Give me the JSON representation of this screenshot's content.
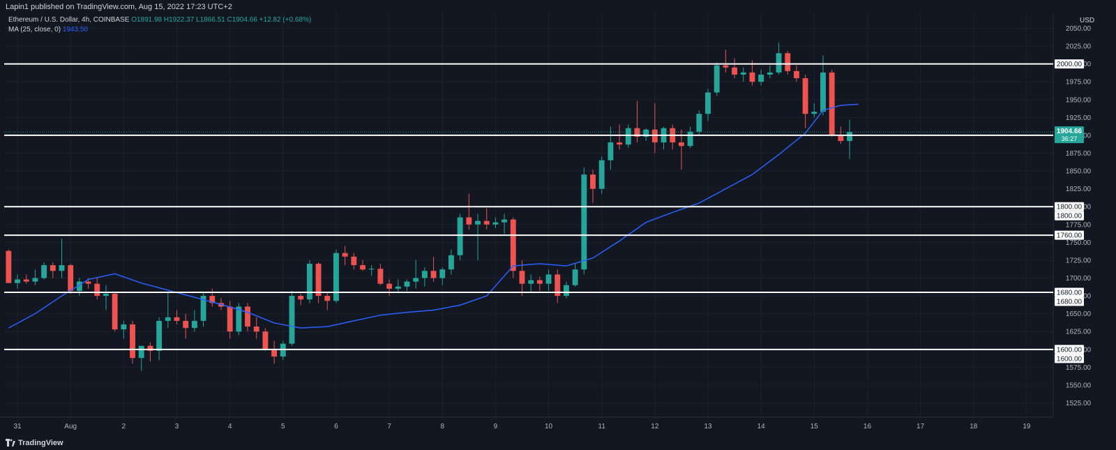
{
  "header": {
    "publisher": "Lapin1 published on TradingView.com, Aug 15, 2022 17:23 UTC+2"
  },
  "legend": {
    "symbol": "Ethereum / U.S. Dollar, 4h, COINBASE",
    "ohlc": "O1891.98 H1922.37 L1866.51 C1904.66 +12.82 (+0.68%)",
    "ma_label": "MA (25, close, 0)",
    "ma_value": "1943.50"
  },
  "footer": {
    "brand": "TradingView"
  },
  "colors": {
    "background": "#131722",
    "up": "#26a69a",
    "down": "#ef5350",
    "ma": "#2962ff",
    "level": "#ffffff",
    "axis_text": "#b2b5be"
  },
  "chart_data": {
    "type": "candlestick",
    "currency_label": "USD",
    "ylim": [
      1505,
      2070
    ],
    "y_ticks": [
      "1525.00",
      "1550.00",
      "1575.00",
      "1600.00",
      "1625.00",
      "1650.00",
      "1675.00",
      "1700.00",
      "1725.00",
      "1750.00",
      "1775.00",
      "1800.00",
      "1825.00",
      "1850.00",
      "1875.00",
      "1900.00",
      "1925.00",
      "1950.00",
      "1975.00",
      "2000.00",
      "2025.00",
      "2050.00"
    ],
    "x_tick_labels": [
      "31",
      "Aug",
      "2",
      "3",
      "4",
      "5",
      "6",
      "7",
      "8",
      "9",
      "10",
      "11",
      "12",
      "13",
      "14",
      "15",
      "16",
      "17",
      "18",
      "19"
    ],
    "x_tick_index": [
      1.5,
      7.5,
      13.5,
      19.5,
      25.5,
      31.5,
      37.5,
      43.5,
      49.5,
      55.5,
      61.5,
      67.5,
      73.5,
      79.5,
      85.5,
      91.5,
      97.5,
      103.5,
      109.5,
      115.5
    ],
    "x_range": [
      0,
      118.5
    ],
    "levels": [
      {
        "value": 2000,
        "label": "2000.00",
        "extra_label": ""
      },
      {
        "value": 1900,
        "label": "1900.00",
        "extra_label": ""
      },
      {
        "value": 1800,
        "label": "1800.00",
        "extra_label": "1800.00"
      },
      {
        "value": 1760,
        "label": "1760.00",
        "extra_label": ""
      },
      {
        "value": 1680,
        "label": "1680.00",
        "extra_label": "1680.00"
      },
      {
        "value": 1600,
        "label": "1600.00",
        "extra_label": "1600.00"
      }
    ],
    "last_price": {
      "value": 1904.66,
      "label": "1904.66",
      "countdown": "36:27"
    },
    "candles": [
      {
        "o": 1738,
        "h": 1740,
        "l": 1693,
        "c": 1693
      },
      {
        "o": 1693,
        "h": 1705,
        "l": 1685,
        "c": 1698
      },
      {
        "o": 1698,
        "h": 1705,
        "l": 1692,
        "c": 1695
      },
      {
        "o": 1695,
        "h": 1712,
        "l": 1690,
        "c": 1700
      },
      {
        "o": 1700,
        "h": 1722,
        "l": 1698,
        "c": 1718
      },
      {
        "o": 1718,
        "h": 1722,
        "l": 1700,
        "c": 1710
      },
      {
        "o": 1710,
        "h": 1755,
        "l": 1700,
        "c": 1718
      },
      {
        "o": 1718,
        "h": 1720,
        "l": 1678,
        "c": 1682
      },
      {
        "o": 1682,
        "h": 1700,
        "l": 1675,
        "c": 1695
      },
      {
        "o": 1695,
        "h": 1700,
        "l": 1685,
        "c": 1692
      },
      {
        "o": 1692,
        "h": 1700,
        "l": 1670,
        "c": 1675
      },
      {
        "o": 1675,
        "h": 1690,
        "l": 1655,
        "c": 1678
      },
      {
        "o": 1678,
        "h": 1680,
        "l": 1625,
        "c": 1628
      },
      {
        "o": 1628,
        "h": 1640,
        "l": 1615,
        "c": 1635
      },
      {
        "o": 1635,
        "h": 1640,
        "l": 1580,
        "c": 1588
      },
      {
        "o": 1588,
        "h": 1600,
        "l": 1570,
        "c": 1605
      },
      {
        "o": 1605,
        "h": 1610,
        "l": 1583,
        "c": 1598
      },
      {
        "o": 1598,
        "h": 1645,
        "l": 1585,
        "c": 1640
      },
      {
        "o": 1640,
        "h": 1680,
        "l": 1630,
        "c": 1645
      },
      {
        "o": 1645,
        "h": 1655,
        "l": 1635,
        "c": 1640
      },
      {
        "o": 1640,
        "h": 1650,
        "l": 1615,
        "c": 1630
      },
      {
        "o": 1630,
        "h": 1655,
        "l": 1625,
        "c": 1640
      },
      {
        "o": 1640,
        "h": 1680,
        "l": 1632,
        "c": 1675
      },
      {
        "o": 1675,
        "h": 1685,
        "l": 1660,
        "c": 1665
      },
      {
        "o": 1665,
        "h": 1672,
        "l": 1655,
        "c": 1660
      },
      {
        "o": 1660,
        "h": 1668,
        "l": 1615,
        "c": 1625
      },
      {
        "o": 1625,
        "h": 1665,
        "l": 1620,
        "c": 1660
      },
      {
        "o": 1660,
        "h": 1665,
        "l": 1625,
        "c": 1632
      },
      {
        "o": 1632,
        "h": 1645,
        "l": 1615,
        "c": 1625
      },
      {
        "o": 1625,
        "h": 1630,
        "l": 1598,
        "c": 1600
      },
      {
        "o": 1600,
        "h": 1612,
        "l": 1580,
        "c": 1590
      },
      {
        "o": 1590,
        "h": 1612,
        "l": 1585,
        "c": 1608
      },
      {
        "o": 1608,
        "h": 1682,
        "l": 1605,
        "c": 1675
      },
      {
        "o": 1675,
        "h": 1678,
        "l": 1662,
        "c": 1670
      },
      {
        "o": 1670,
        "h": 1725,
        "l": 1665,
        "c": 1720
      },
      {
        "o": 1720,
        "h": 1722,
        "l": 1665,
        "c": 1675
      },
      {
        "o": 1675,
        "h": 1680,
        "l": 1655,
        "c": 1668
      },
      {
        "o": 1668,
        "h": 1740,
        "l": 1665,
        "c": 1735
      },
      {
        "o": 1735,
        "h": 1745,
        "l": 1718,
        "c": 1730
      },
      {
        "o": 1730,
        "h": 1735,
        "l": 1712,
        "c": 1718
      },
      {
        "o": 1718,
        "h": 1725,
        "l": 1710,
        "c": 1712
      },
      {
        "o": 1712,
        "h": 1718,
        "l": 1703,
        "c": 1713
      },
      {
        "o": 1713,
        "h": 1720,
        "l": 1690,
        "c": 1692
      },
      {
        "o": 1692,
        "h": 1698,
        "l": 1675,
        "c": 1685
      },
      {
        "o": 1685,
        "h": 1698,
        "l": 1680,
        "c": 1688
      },
      {
        "o": 1688,
        "h": 1698,
        "l": 1682,
        "c": 1695
      },
      {
        "o": 1695,
        "h": 1725,
        "l": 1685,
        "c": 1700
      },
      {
        "o": 1700,
        "h": 1715,
        "l": 1688,
        "c": 1710
      },
      {
        "o": 1710,
        "h": 1730,
        "l": 1695,
        "c": 1700
      },
      {
        "o": 1700,
        "h": 1715,
        "l": 1690,
        "c": 1712
      },
      {
        "o": 1712,
        "h": 1740,
        "l": 1705,
        "c": 1732
      },
      {
        "o": 1732,
        "h": 1790,
        "l": 1725,
        "c": 1785
      },
      {
        "o": 1785,
        "h": 1818,
        "l": 1768,
        "c": 1775
      },
      {
        "o": 1775,
        "h": 1790,
        "l": 1725,
        "c": 1780
      },
      {
        "o": 1780,
        "h": 1798,
        "l": 1768,
        "c": 1775
      },
      {
        "o": 1775,
        "h": 1785,
        "l": 1770,
        "c": 1778
      },
      {
        "o": 1778,
        "h": 1790,
        "l": 1762,
        "c": 1782
      },
      {
        "o": 1782,
        "h": 1785,
        "l": 1700,
        "c": 1710
      },
      {
        "o": 1710,
        "h": 1725,
        "l": 1675,
        "c": 1692
      },
      {
        "o": 1692,
        "h": 1705,
        "l": 1680,
        "c": 1697
      },
      {
        "o": 1697,
        "h": 1702,
        "l": 1682,
        "c": 1692
      },
      {
        "o": 1692,
        "h": 1712,
        "l": 1682,
        "c": 1705
      },
      {
        "o": 1705,
        "h": 1712,
        "l": 1665,
        "c": 1675
      },
      {
        "o": 1675,
        "h": 1695,
        "l": 1672,
        "c": 1690
      },
      {
        "o": 1690,
        "h": 1720,
        "l": 1688,
        "c": 1712
      },
      {
        "o": 1712,
        "h": 1855,
        "l": 1705,
        "c": 1845
      },
      {
        "o": 1845,
        "h": 1852,
        "l": 1805,
        "c": 1825
      },
      {
        "o": 1825,
        "h": 1870,
        "l": 1818,
        "c": 1865
      },
      {
        "o": 1865,
        "h": 1912,
        "l": 1852,
        "c": 1890
      },
      {
        "o": 1890,
        "h": 1915,
        "l": 1880,
        "c": 1887
      },
      {
        "o": 1887,
        "h": 1915,
        "l": 1883,
        "c": 1910
      },
      {
        "o": 1910,
        "h": 1948,
        "l": 1890,
        "c": 1898
      },
      {
        "o": 1898,
        "h": 1910,
        "l": 1892,
        "c": 1908
      },
      {
        "o": 1908,
        "h": 1945,
        "l": 1875,
        "c": 1890
      },
      {
        "o": 1890,
        "h": 1912,
        "l": 1880,
        "c": 1910
      },
      {
        "o": 1910,
        "h": 1915,
        "l": 1880,
        "c": 1890
      },
      {
        "o": 1890,
        "h": 1908,
        "l": 1852,
        "c": 1885
      },
      {
        "o": 1885,
        "h": 1912,
        "l": 1882,
        "c": 1905
      },
      {
        "o": 1905,
        "h": 1935,
        "l": 1900,
        "c": 1930
      },
      {
        "o": 1930,
        "h": 1965,
        "l": 1920,
        "c": 1960
      },
      {
        "o": 1960,
        "h": 2002,
        "l": 1955,
        "c": 1998
      },
      {
        "o": 1998,
        "h": 2020,
        "l": 1988,
        "c": 1995
      },
      {
        "o": 1995,
        "h": 2008,
        "l": 1980,
        "c": 1985
      },
      {
        "o": 1985,
        "h": 1995,
        "l": 1975,
        "c": 1988
      },
      {
        "o": 1988,
        "h": 2005,
        "l": 1970,
        "c": 1975
      },
      {
        "o": 1975,
        "h": 1992,
        "l": 1970,
        "c": 1985
      },
      {
        "o": 1985,
        "h": 1998,
        "l": 1980,
        "c": 1988
      },
      {
        "o": 1988,
        "h": 2030,
        "l": 1985,
        "c": 2015
      },
      {
        "o": 2015,
        "h": 2018,
        "l": 1985,
        "c": 1990
      },
      {
        "o": 1990,
        "h": 1998,
        "l": 1975,
        "c": 1980
      },
      {
        "o": 1980,
        "h": 1985,
        "l": 1910,
        "c": 1930
      },
      {
        "o": 1930,
        "h": 1945,
        "l": 1925,
        "c": 1933
      },
      {
        "o": 1933,
        "h": 2012,
        "l": 1928,
        "c": 1988
      },
      {
        "o": 1988,
        "h": 1992,
        "l": 1898,
        "c": 1900
      },
      {
        "o": 1900,
        "h": 1912,
        "l": 1888,
        "c": 1892
      },
      {
        "o": 1892,
        "h": 1922,
        "l": 1867,
        "c": 1904.66
      }
    ],
    "ma_series": [
      {
        "x": 0,
        "y": 1630
      },
      {
        "x": 3,
        "y": 1650
      },
      {
        "x": 6,
        "y": 1675
      },
      {
        "x": 9,
        "y": 1698
      },
      {
        "x": 12,
        "y": 1706
      },
      {
        "x": 15,
        "y": 1693
      },
      {
        "x": 18,
        "y": 1683
      },
      {
        "x": 21,
        "y": 1673
      },
      {
        "x": 24,
        "y": 1663
      },
      {
        "x": 27,
        "y": 1652
      },
      {
        "x": 30,
        "y": 1637
      },
      {
        "x": 33,
        "y": 1630
      },
      {
        "x": 36,
        "y": 1632
      },
      {
        "x": 39,
        "y": 1640
      },
      {
        "x": 42,
        "y": 1648
      },
      {
        "x": 45,
        "y": 1652
      },
      {
        "x": 48,
        "y": 1655
      },
      {
        "x": 51,
        "y": 1662
      },
      {
        "x": 54,
        "y": 1675
      },
      {
        "x": 57,
        "y": 1717
      },
      {
        "x": 60,
        "y": 1720
      },
      {
        "x": 63,
        "y": 1717
      },
      {
        "x": 66,
        "y": 1728
      },
      {
        "x": 69,
        "y": 1752
      },
      {
        "x": 72,
        "y": 1778
      },
      {
        "x": 75,
        "y": 1792
      },
      {
        "x": 78,
        "y": 1805
      },
      {
        "x": 81,
        "y": 1825
      },
      {
        "x": 84,
        "y": 1845
      },
      {
        "x": 87,
        "y": 1873
      },
      {
        "x": 90,
        "y": 1903
      },
      {
        "x": 92,
        "y": 1935
      },
      {
        "x": 94,
        "y": 1942
      },
      {
        "x": 96,
        "y": 1943.5
      }
    ]
  }
}
